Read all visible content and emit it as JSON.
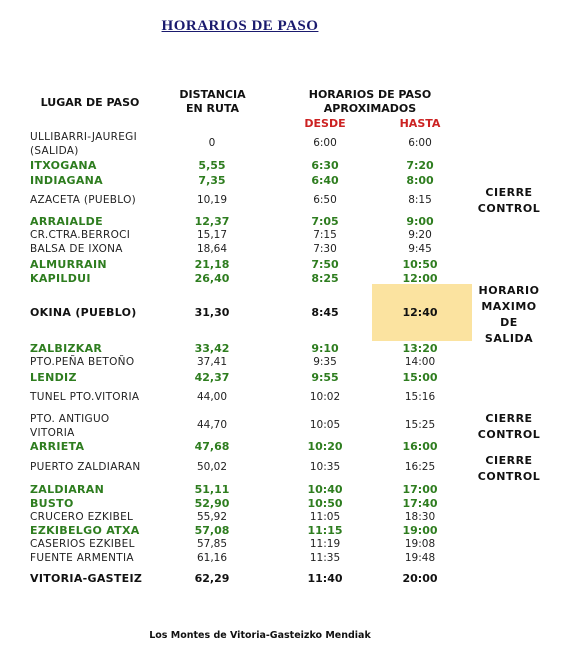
{
  "title": "HORARIOS  DE  PASO",
  "headers": {
    "place": "LUGAR DE PASO",
    "distance": "DISTANCIA\nEN RUTA",
    "schedule": "HORARIOS DE PASO\nAPROXIMADOS",
    "from": "DESDE",
    "to": "HASTA"
  },
  "rows": [
    {
      "place": "ULLIBARRI-JAUREGI\n(SALIDA)",
      "distance": "0",
      "from": "6:00",
      "to": "6:00",
      "style": "normal"
    },
    {
      "place": "ITXOGANA",
      "distance": "5,55",
      "from": "6:30",
      "to": "7:20",
      "style": "green"
    },
    {
      "place": "INDIAGANA",
      "distance": "7,35",
      "from": "6:40",
      "to": "8:00",
      "style": "green"
    },
    {
      "place": "AZACETA (PUEBLO)",
      "distance": "10,19",
      "from": "6:50",
      "to": "8:15",
      "style": "normal"
    },
    {
      "place": "ARRAIALDE",
      "distance": "12,37",
      "from": "7:05",
      "to": "9:00",
      "style": "green"
    },
    {
      "place": "CR.CTRA.BERROCI",
      "distance": "15,17",
      "from": "7:15",
      "to": "9:20",
      "style": "normal"
    },
    {
      "place": "BALSA DE IXONA",
      "distance": "18,64",
      "from": "7:30",
      "to": "9:45",
      "style": "normal"
    },
    {
      "place": "ALMURRAIN",
      "distance": "21,18",
      "from": "7:50",
      "to": "10:50",
      "style": "green"
    },
    {
      "place": "KAPILDUI",
      "distance": "26,40",
      "from": "8:25",
      "to": "12:00",
      "style": "green"
    },
    {
      "place": "OKINA  (PUEBLO)",
      "distance": "31,30",
      "from": "8:45",
      "to": "12:40",
      "style": "okina"
    },
    {
      "place": "ZALBIZKAR",
      "distance": "33,42",
      "from": "9:10",
      "to": "13:20",
      "style": "green"
    },
    {
      "place": "PTO.PEÑA BETOÑO",
      "distance": "37,41",
      "from": "9:35",
      "to": "14:00",
      "style": "normal"
    },
    {
      "place": "LENDIZ",
      "distance": "42,37",
      "from": "9:55",
      "to": "15:00",
      "style": "green"
    },
    {
      "place": "TUNEL PTO.VITORIA",
      "distance": "44,00",
      "from": "10:02",
      "to": "15:16",
      "style": "normal"
    },
    {
      "place": "PTO. ANTIGUO\nVITORIA",
      "distance": "44,70",
      "from": "10:05",
      "to": "15:25",
      "style": "normal"
    },
    {
      "place": "ARRIETA",
      "distance": "47,68",
      "from": "10:20",
      "to": "16:00",
      "style": "green"
    },
    {
      "place": "PUERTO ZALDIARAN",
      "distance": "50,02",
      "from": "10:35",
      "to": "16:25",
      "style": "normal"
    },
    {
      "place": "ZALDIARAN",
      "distance": "51,11",
      "from": "10:40",
      "to": "17:00",
      "style": "green"
    },
    {
      "place": "BUSTO",
      "distance": "52,90",
      "from": "10:50",
      "to": "17:40",
      "style": "green"
    },
    {
      "place": "CRUCERO EZKIBEL",
      "distance": "55,92",
      "from": "11:05",
      "to": "18:30",
      "style": "normal"
    },
    {
      "place": "EZKIBELGO ATXA",
      "distance": "57,08",
      "from": "11:15",
      "to": "19:00",
      "style": "green"
    },
    {
      "place": "CASERIOS EZKIBEL",
      "distance": "57,85",
      "from": "11:19",
      "to": "19:08",
      "style": "normal"
    },
    {
      "place": "FUENTE ARMENTIA",
      "distance": "61,16",
      "from": "11:35",
      "to": "19:48",
      "style": "normal"
    },
    {
      "place": "VITORIA-GASTEIZ",
      "distance": "62,29",
      "from": "11:40",
      "to": "20:00",
      "style": "bold"
    }
  ],
  "notes": [
    "CIERRE\nCONTROL",
    "HORARIO\nMAXIMO\nDE\nSALIDA",
    "CIERRE\nCONTROL",
    "CIERRE\nCONTROL"
  ],
  "footer": "Los Montes de Vitoria-Gasteizko Mendiak",
  "colors": {
    "green": "#2e7d1f",
    "red": "#cc2222",
    "highlight": "#fbe3a0",
    "title": "#1a1a6e"
  }
}
